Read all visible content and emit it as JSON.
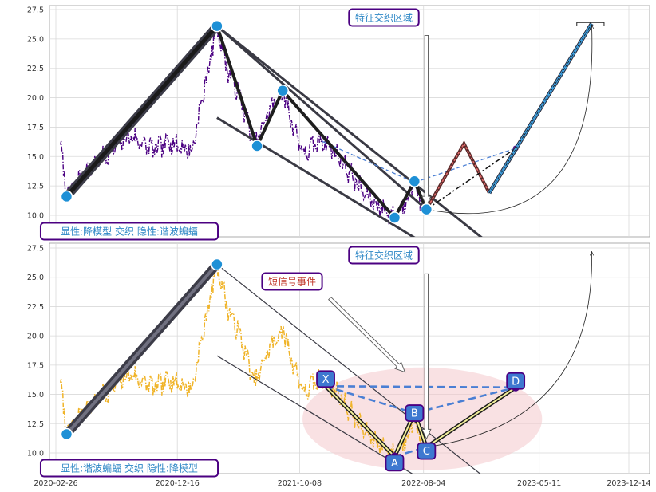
{
  "chart_data": [
    {
      "type": "line",
      "panel": "top",
      "ylim": [
        8.2,
        28.2
      ],
      "yticks": [
        10.0,
        12.5,
        15.0,
        17.5,
        20.0,
        22.5,
        25.0,
        27.5
      ],
      "ytick_labels": [
        "10.0",
        "12.5",
        "15.0",
        "17.5",
        "20.0",
        "22.5",
        "25.0",
        "27.5"
      ],
      "grid": true,
      "price_color": "#4b0082",
      "price_anchor_points": [
        [
          "2020-03-08",
          16.0
        ],
        [
          "2020-03-23",
          11.6
        ],
        [
          "2020-05-01",
          13.5
        ],
        [
          "2020-06-15",
          14.8
        ],
        [
          "2020-08-20",
          16.8
        ],
        [
          "2020-10-20",
          15.6
        ],
        [
          "2020-11-30",
          16.2
        ],
        [
          "2021-01-20",
          15.5
        ],
        [
          "2021-03-22",
          26.1
        ],
        [
          "2021-04-20",
          22.0
        ],
        [
          "2021-05-15",
          20.3
        ],
        [
          "2021-06-20",
          16.0
        ],
        [
          "2021-06-27",
          16.2
        ],
        [
          "2021-07-20",
          18.5
        ],
        [
          "2021-08-28",
          20.6
        ],
        [
          "2021-09-20",
          17.8
        ],
        [
          "2021-10-20",
          15.2
        ],
        [
          "2021-12-01",
          16.5
        ],
        [
          "2022-01-10",
          15.0
        ],
        [
          "2022-03-10",
          12.0
        ],
        [
          "2022-05-26",
          9.7
        ],
        [
          "2022-06-25",
          11.5
        ],
        [
          "2022-07-13",
          12.9
        ],
        [
          "2022-08-02",
          10.8
        ],
        [
          "2022-08-11",
          10.5
        ]
      ],
      "zigzag_points": [
        [
          "2020-03-23",
          11.6
        ],
        [
          "2021-03-22",
          26.1
        ],
        [
          "2021-06-27",
          15.9
        ],
        [
          "2021-08-28",
          20.6
        ],
        [
          "2022-05-26",
          9.8
        ],
        [
          "2022-07-13",
          12.9
        ],
        [
          "2022-08-11",
          10.5
        ]
      ],
      "pivot_marker_color": "#1e90d6",
      "channel_lines": [
        {
          "from": [
            "2021-03-22",
            26.1
          ],
          "to": [
            "2022-08-11",
            10.5
          ]
        },
        {
          "from": [
            "2021-03-22",
            26.1
          ],
          "to": [
            "2023-01-10",
            7.6
          ]
        },
        {
          "from": [
            "2021-03-22",
            18.3
          ],
          "to": [
            "2022-08-15",
            7.4
          ]
        }
      ],
      "dashed_blue_lines": [
        {
          "from": [
            "2021-12-01",
            16.3
          ],
          "to": [
            "2022-07-13",
            12.8
          ]
        },
        {
          "from": [
            "2022-07-13",
            12.8
          ],
          "to": [
            "2023-03-15",
            15.7
          ]
        }
      ],
      "projection_zigzag": [
        [
          "2022-08-11",
          10.5
        ],
        [
          "2022-11-10",
          16.1
        ],
        [
          "2023-01-10",
          11.9
        ]
      ],
      "projection_dashdot": [
        [
          "2022-08-11",
          10.5
        ],
        [
          "2023-03-15",
          15.7
        ]
      ],
      "projection_end_marker": [
        "2023-03-15",
        15.7
      ],
      "projection_blue_line": {
        "from": [
          "2023-01-10",
          11.9
        ],
        "to": [
          "2023-09-15",
          26.3
        ]
      },
      "target_bracket": {
        "x_start": "2023-08-10",
        "x_end": "2023-10-15",
        "y": 26.4
      },
      "curved_arrow": {
        "from": [
          "2022-08-11",
          10.5
        ],
        "to": [
          "2023-09-15",
          26.2
        ]
      },
      "vertical_arrow": {
        "x": "2022-08-11",
        "y_top": 25.3,
        "y_bottom": 10.8
      },
      "box_labels": {
        "region": "特征交织区域",
        "legend": "显性:降模型 交织 隐性:谐波蝙蝠"
      }
    },
    {
      "type": "line",
      "panel": "bottom",
      "ylim": [
        8.2,
        28.2
      ],
      "yticks": [
        10.0,
        12.5,
        15.0,
        17.5,
        20.0,
        22.5,
        25.0,
        27.5
      ],
      "ytick_labels": [
        "10.0",
        "12.5",
        "15.0",
        "17.5",
        "20.0",
        "22.5",
        "25.0",
        "27.5"
      ],
      "xlim": [
        "2020-02-26",
        "2023-12-30"
      ],
      "xticks": [
        "2020-02-26",
        "2020-12-16",
        "2021-10-08",
        "2022-08-04",
        "2023-05-11",
        "2023-12-14"
      ],
      "xtick_labels": [
        "2020-02-26",
        "2020-12-16",
        "2021-10-08",
        "2022-08-04",
        "2023-05-11",
        "2023-12-14"
      ],
      "grid": true,
      "price_color": "#f0b429",
      "thick_leg": {
        "from": [
          "2020-03-23",
          11.6
        ],
        "to": [
          "2021-03-22",
          26.1
        ]
      },
      "pivot_points": [
        [
          "2020-03-23",
          11.6
        ],
        [
          "2021-03-22",
          26.1
        ]
      ],
      "pattern_points": {
        "X": [
          "2021-12-10",
          15.7
        ],
        "A": [
          "2022-05-26",
          9.7
        ],
        "B": [
          "2022-07-13",
          13.4
        ],
        "C": [
          "2022-08-11",
          10.5
        ],
        "D": [
          "2023-03-15",
          15.6
        ]
      },
      "pattern_labels": [
        "X",
        "A",
        "B",
        "C",
        "D"
      ],
      "channel_lines": [
        {
          "from": [
            "2021-03-22",
            26.1
          ],
          "to": [
            "2023-01-10",
            7.6
          ]
        },
        {
          "from": [
            "2021-03-22",
            18.3
          ],
          "to": [
            "2022-08-15",
            7.4
          ]
        }
      ],
      "ellipse": {
        "center": [
          "2022-08-01",
          12.9
        ],
        "rx_days": 290,
        "ry": 4.4
      },
      "curved_arrow": {
        "from": [
          "2022-08-11",
          10.5
        ],
        "to": [
          "2023-09-15",
          27.2
        ]
      },
      "vertical_arrow": {
        "x": "2022-08-11",
        "y_top": 25.3,
        "y_bottom": 11.2
      },
      "signal_arrow": {
        "from": [
          "2021-12-20",
          23.2
        ],
        "to": [
          "2022-06-20",
          16.9
        ]
      },
      "box_labels": {
        "region": "特征交织区域",
        "signal": "短信号事件",
        "legend": "显性:谐波蝙蝠 交织 隐性:降模型"
      }
    }
  ]
}
